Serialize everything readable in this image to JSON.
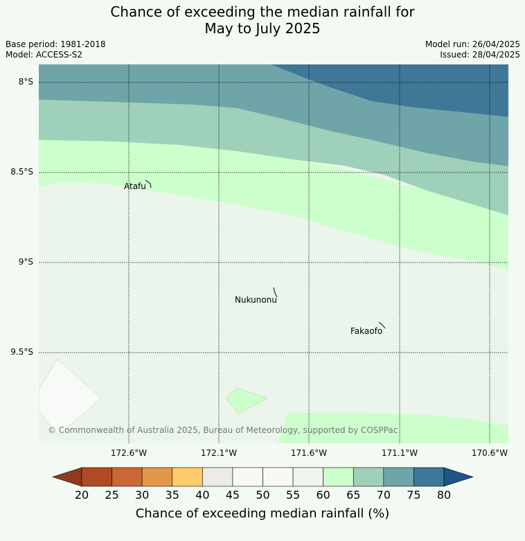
{
  "title_line1": "Chance of exceeding the median rainfall for",
  "title_line2": "May to July 2025",
  "meta": {
    "base_period": "Base period: 1981-2018",
    "model": "Model: ACCESS-S2",
    "model_run": "Model run: 26/04/2025",
    "issued": "Issued: 28/04/2025"
  },
  "lat_labels": [
    "8°S",
    "8.5°S",
    "9°S",
    "9.5°S"
  ],
  "lon_labels": [
    "172.6°W",
    "172.1°W",
    "171.6°W",
    "171.1°W",
    "170.6°W"
  ],
  "places": {
    "atafu": "Atafu",
    "nukunonu": "Nukunonu",
    "fakaofo": "Fakaofo"
  },
  "copyright": "© Commonwealth of Australia 2025, Bureau of Meteorology, supported by COSPPac",
  "colorbar": {
    "ticks": [
      "20",
      "25",
      "30",
      "35",
      "40",
      "45",
      "50",
      "55",
      "60",
      "65",
      "70",
      "75",
      "80"
    ],
    "colors": [
      "#b04a24",
      "#cc6634",
      "#e39748",
      "#fecb68",
      "#ecebe6",
      "#f8f9f6",
      "#f8f9f6",
      "#eef6ee",
      "#ccffcc",
      "#9fd1ba",
      "#6fa5a8",
      "#3f7897"
    ],
    "under_color": "#8e3a1f",
    "over_color": "#1f5486",
    "label": "Chance of exceeding median rainfall (%)"
  },
  "map_colors": {
    "c55_60": "#ebf5eb",
    "c60_65": "#ccffcc",
    "c65_70": "#9fd1ba",
    "c70_75": "#6fa5a8",
    "c75_80": "#3f7897",
    "c50_55": "#f8faf7"
  }
}
